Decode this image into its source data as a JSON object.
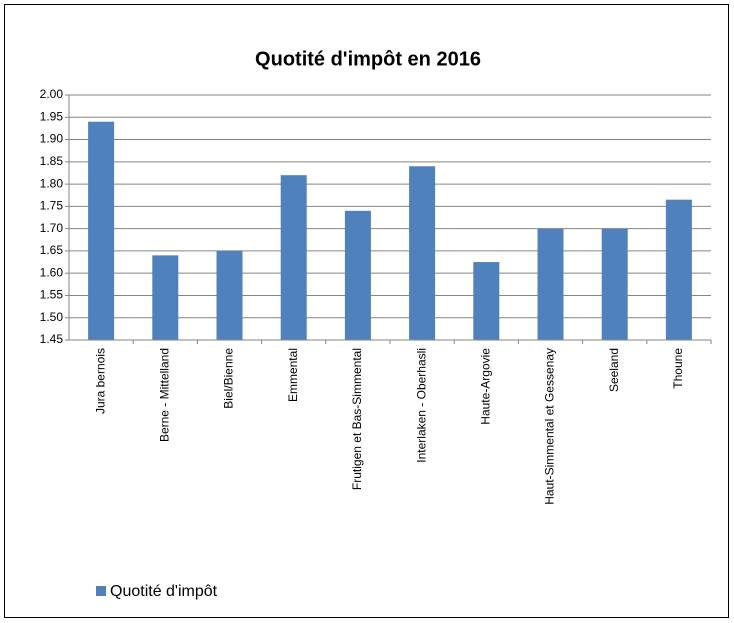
{
  "chart_data": {
    "type": "bar",
    "title": "Quotité d'impôt en 2016",
    "categories": [
      "Jura bernois",
      "Berne - Mittelland",
      "Biel/Bienne",
      "Emmental",
      "Frutigen et Bas-Simmental",
      "Interlaken - Oberhasli",
      "Haute-Argovie",
      "Haut-Simmental et Gessenay",
      "Seeland",
      "Thoune"
    ],
    "series": [
      {
        "name": "Quotité d'impôt",
        "color": "#4f81bd",
        "values": [
          1.94,
          1.64,
          1.65,
          1.82,
          1.74,
          1.84,
          1.625,
          1.7,
          1.7,
          1.765
        ]
      }
    ],
    "ylim": [
      1.45,
      2.0
    ],
    "yticks": [
      1.45,
      {
        "value": 1.5,
        "label": "1.50"
      },
      1.55,
      {
        "value": 1.6,
        "label": "1.60"
      },
      1.65,
      {
        "value": 1.7,
        "label": "1.70"
      },
      1.75,
      {
        "value": 1.8,
        "label": "1.80"
      },
      1.85,
      {
        "value": 1.9,
        "label": "1.90"
      },
      1.95,
      {
        "value": 2.0,
        "label": "2.00"
      }
    ],
    "grid": true,
    "legend": "bottom-left"
  }
}
